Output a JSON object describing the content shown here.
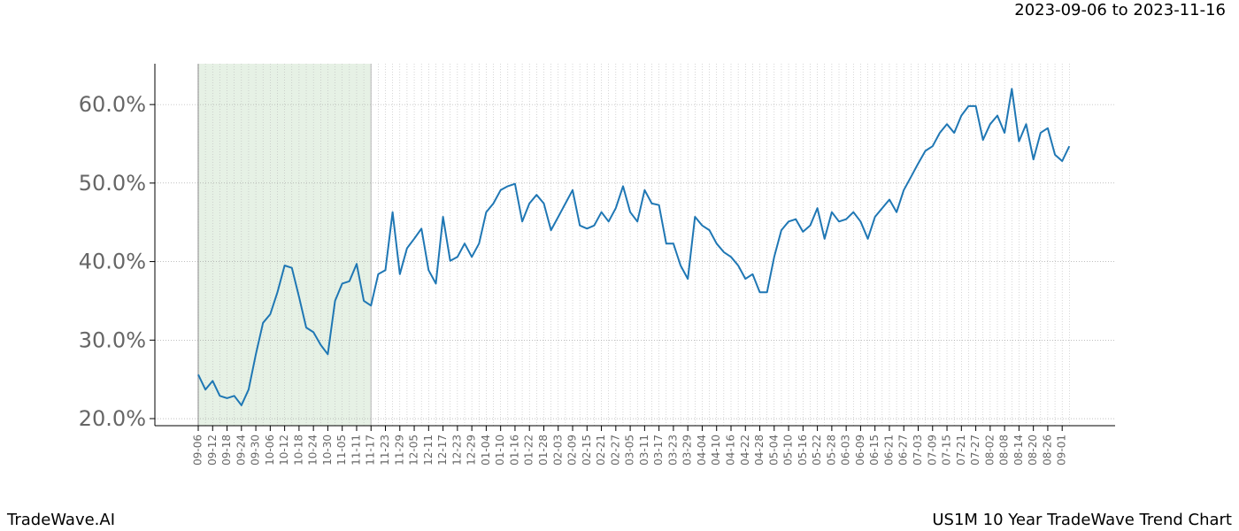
{
  "chart_data": {
    "type": "line",
    "title": "US1M 10 Year TradeWave Trend Chart",
    "date_range": "2023-09-06 to 2023-11-16",
    "brand": "TradeWave.AI",
    "categories": [
      "09-06",
      null,
      "09-12",
      null,
      "09-18",
      null,
      "09-24",
      null,
      "09-30",
      null,
      "10-06",
      null,
      "10-12",
      null,
      "10-18",
      null,
      "10-24",
      null,
      "10-30",
      null,
      "11-05",
      null,
      "11-11",
      null,
      "11-17",
      null,
      "11-23",
      null,
      "11-29",
      null,
      "12-05",
      null,
      "12-11",
      null,
      "12-17",
      null,
      "12-23",
      null,
      "12-29",
      null,
      "01-04",
      null,
      "01-10",
      null,
      "01-16",
      null,
      "01-22",
      null,
      "01-28",
      null,
      "02-03",
      null,
      "02-09",
      null,
      "02-15",
      null,
      "02-21",
      null,
      "02-27",
      null,
      "03-05",
      null,
      "03-11",
      null,
      "03-17",
      null,
      "03-23",
      null,
      "03-29",
      null,
      "04-04",
      null,
      "04-10",
      null,
      "04-16",
      null,
      "04-22",
      null,
      "04-28",
      null,
      "05-04",
      null,
      "05-10",
      null,
      "05-16",
      null,
      "05-22",
      null,
      "05-28",
      null,
      "06-03",
      null,
      "06-09",
      null,
      "06-15",
      null,
      "06-21",
      null,
      "06-27",
      null,
      "07-03",
      null,
      "07-09",
      null,
      "07-15",
      null,
      "07-21",
      null,
      "07-27",
      null,
      "08-02",
      null,
      "08-08",
      null,
      "08-14",
      null,
      "08-20",
      null,
      "08-26",
      null,
      "09-01",
      null
    ],
    "values": [
      25.6,
      23.7,
      24.8,
      22.9,
      22.6,
      22.9,
      21.7,
      23.7,
      28.2,
      32.2,
      33.3,
      36.1,
      39.5,
      39.2,
      35.5,
      31.6,
      31.0,
      29.4,
      28.2,
      35.0,
      37.2,
      37.5,
      39.7,
      35.0,
      34.4,
      38.4,
      38.9,
      46.3,
      38.4,
      41.7,
      42.9,
      44.2,
      38.9,
      37.2,
      45.7,
      40.1,
      40.6,
      42.3,
      40.6,
      42.3,
      46.3,
      47.4,
      49.1,
      49.6,
      49.9,
      45.1,
      47.4,
      48.5,
      47.4,
      44.0,
      45.7,
      47.4,
      49.1,
      44.6,
      44.2,
      44.6,
      46.3,
      45.1,
      46.8,
      49.6,
      46.3,
      45.1,
      49.1,
      47.4,
      47.2,
      42.3,
      42.3,
      39.5,
      37.8,
      45.7,
      44.6,
      44.0,
      42.3,
      41.2,
      40.6,
      39.5,
      37.8,
      38.4,
      36.1,
      36.1,
      40.6,
      44.0,
      45.1,
      45.4,
      43.8,
      44.6,
      46.8,
      42.9,
      46.3,
      45.1,
      45.4,
      46.3,
      45.1,
      42.9,
      45.7,
      46.8,
      47.9,
      46.3,
      49.1,
      50.8,
      52.5,
      54.1,
      54.7,
      56.4,
      57.5,
      56.4,
      58.6,
      59.8,
      59.8,
      55.5,
      57.5,
      58.6,
      56.4,
      62.0,
      55.3,
      57.5,
      53.0,
      56.4,
      57.0,
      53.6,
      52.8,
      54.7
    ],
    "color": "#1f77b4",
    "highlight": {
      "from": "09-06",
      "to": "11-17",
      "color": "#d5e8d4"
    },
    "ylim": [
      19.1,
      65.2
    ],
    "yticks": [
      {
        "value": 20,
        "label": "20.0%"
      },
      {
        "value": 30,
        "label": "30.0%"
      },
      {
        "value": 40,
        "label": "40.0%"
      },
      {
        "value": 50,
        "label": "50.0%"
      },
      {
        "value": 60,
        "label": "60.0%"
      }
    ],
    "grid": true
  }
}
